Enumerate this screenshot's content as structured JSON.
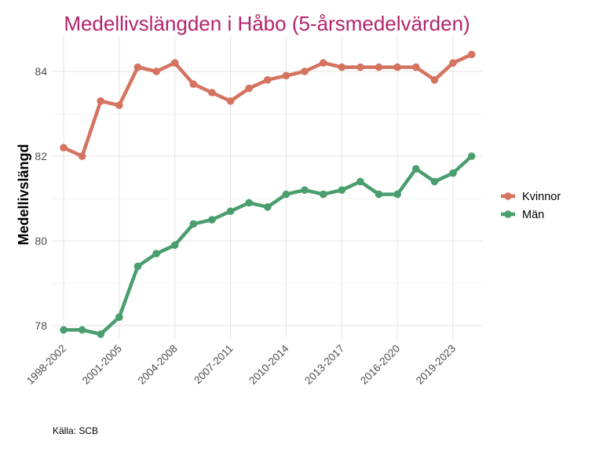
{
  "chart_data": {
    "type": "line",
    "title": "Medellivslängden i Håbo (5-årsmedelvärden)",
    "xlabel": "",
    "ylabel": "Medellivslängd",
    "caption": "Källa: SCB",
    "ylim": [
      77.7,
      84.8
    ],
    "yticks": [
      78,
      80,
      82,
      84
    ],
    "grid": true,
    "legend_position": "right",
    "categories": [
      "1998-2002",
      "1999-2003",
      "2000-2004",
      "2001-2005",
      "2002-2006",
      "2003-2007",
      "2004-2008",
      "2005-2009",
      "2006-2010",
      "2007-2011",
      "2008-2012",
      "2009-2013",
      "2010-2014",
      "2011-2015",
      "2012-2016",
      "2013-2017",
      "2014-2018",
      "2015-2019",
      "2016-2020",
      "2017-2021",
      "2018-2022",
      "2019-2023",
      "2020-2024"
    ],
    "tick_labels": [
      "1998-2002",
      "2001-2005",
      "2004-2008",
      "2007-2011",
      "2010-2014",
      "2013-2017",
      "2016-2020",
      "2019-2023"
    ],
    "series": [
      {
        "name": "Kvinnor",
        "color": "#d4735f",
        "values": [
          82.2,
          82.0,
          83.3,
          83.2,
          84.1,
          84.0,
          84.2,
          83.7,
          83.5,
          83.3,
          83.6,
          83.8,
          83.9,
          84.0,
          84.2,
          84.1,
          84.1,
          84.1,
          84.1,
          84.1,
          83.8,
          84.2,
          84.4
        ]
      },
      {
        "name": "Män",
        "color": "#4a9e6e",
        "values": [
          77.9,
          77.9,
          77.8,
          78.2,
          79.4,
          79.7,
          79.9,
          80.4,
          80.5,
          80.7,
          80.9,
          80.8,
          81.1,
          81.2,
          81.1,
          81.2,
          81.4,
          81.1,
          81.1,
          81.7,
          81.4,
          81.6,
          82.0
        ]
      }
    ],
    "title_color": "#b5236b"
  }
}
